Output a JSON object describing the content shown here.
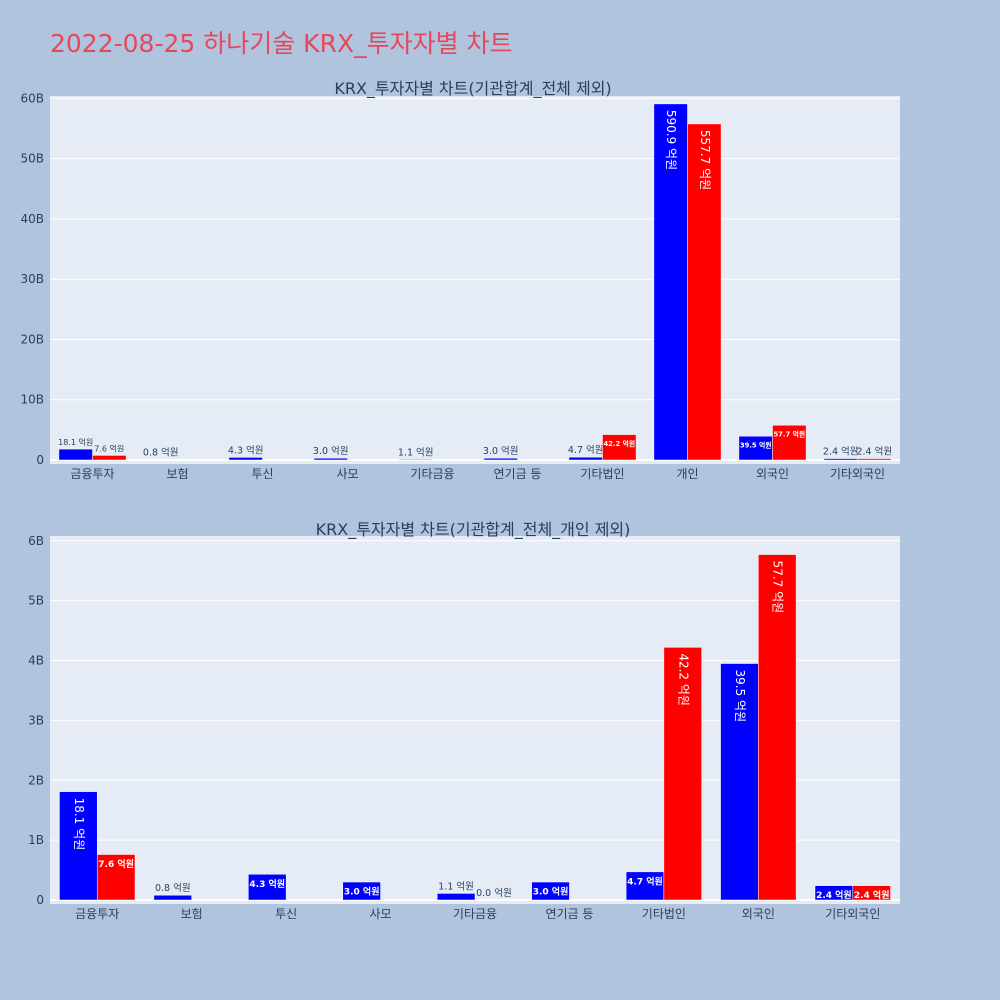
{
  "title": "2022-08-25 하나기술 KRX_투자자별 차트",
  "colors": {
    "background": "#b0c4de",
    "plot_bg": "#e5ecf6",
    "title": "#e8465a",
    "buy": "#0000ff",
    "sell": "#ff0000"
  },
  "chart_data": [
    {
      "type": "bar",
      "title": "KRX_투자자별 차트(기관합계_전체 제외)",
      "categories": [
        "금융투자",
        "보험",
        "투신",
        "사모",
        "기타금융",
        "연기금 등",
        "기타법인",
        "개인",
        "외국인",
        "기타외국인"
      ],
      "series": [
        {
          "color": "#0000ff",
          "values": [
            1.81,
            0.08,
            0.43,
            0.3,
            0.11,
            0.3,
            0.47,
            59.09,
            3.95,
            0.24
          ],
          "labels": [
            "18.1 억원",
            "0.8 억원",
            "4.3 억원",
            "3.0 억원",
            "1.1 억원",
            "3.0 억원",
            "4.7 억원",
            "590.9 억원",
            "39.5 억원",
            "2.4 억원"
          ]
        },
        {
          "color": "#ff0000",
          "values": [
            0.76,
            null,
            null,
            null,
            null,
            null,
            4.22,
            55.77,
            5.77,
            0.24
          ],
          "labels": [
            "7.6 억원",
            "",
            "",
            "",
            "",
            "",
            "42.2 억원",
            "557.7 억원",
            "57.7 억원",
            "2.4 억원"
          ]
        }
      ],
      "yticks": [
        0,
        10,
        20,
        30,
        40,
        50,
        60
      ],
      "ytick_labels": [
        "0",
        "10B",
        "20B",
        "30B",
        "40B",
        "50B",
        "60B"
      ],
      "ylim": [
        0,
        60.4
      ],
      "grid": true,
      "legend": "none"
    },
    {
      "type": "bar",
      "title": "KRX_투자자별 차트(기관합계_전체_개인 제외)",
      "categories": [
        "금융투자",
        "보험",
        "투신",
        "사모",
        "기타금융",
        "연기금 등",
        "기타법인",
        "외국인",
        "기타외국인"
      ],
      "series": [
        {
          "color": "#0000ff",
          "values": [
            1.81,
            0.08,
            0.43,
            0.3,
            0.11,
            0.3,
            0.47,
            3.95,
            0.24
          ],
          "labels": [
            "18.1 억원",
            "0.8 억원",
            "4.3 억원",
            "3.0 억원",
            "1.1 억원",
            "3.0 억원",
            "4.7 억원",
            "39.5 억원",
            "2.4 억원"
          ]
        },
        {
          "color": "#ff0000",
          "values": [
            0.76,
            null,
            null,
            null,
            0.0,
            null,
            4.22,
            5.77,
            0.24
          ],
          "labels": [
            "7.6 억원",
            "",
            "",
            "",
            "0.0 억원",
            "",
            "42.2 억원",
            "57.7 억원",
            "2.4 억원"
          ]
        }
      ],
      "yticks": [
        0,
        1,
        2,
        3,
        4,
        5,
        6
      ],
      "ytick_labels": [
        "0",
        "1B",
        "2B",
        "3B",
        "4B",
        "5B",
        "6B"
      ],
      "ylim": [
        0,
        6.08
      ],
      "grid": true,
      "legend": "none"
    }
  ]
}
